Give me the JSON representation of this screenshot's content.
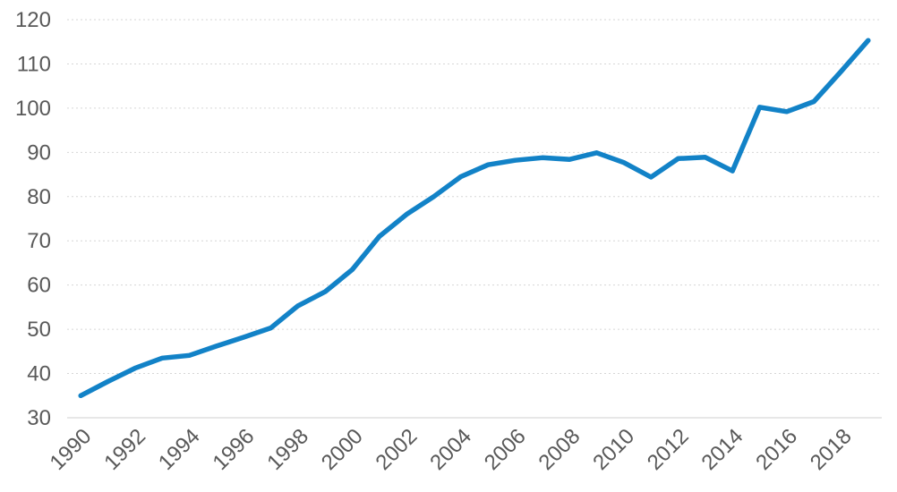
{
  "chart_data": {
    "type": "line",
    "title": "",
    "xlabel": "",
    "ylabel": "",
    "legend": "none",
    "grid": "horizontal-dashed",
    "ylim": [
      30,
      120
    ],
    "y_ticks": [
      30,
      40,
      50,
      60,
      70,
      80,
      90,
      100,
      110,
      120
    ],
    "x": [
      1990,
      1991,
      1992,
      1993,
      1994,
      1995,
      1996,
      1997,
      1998,
      1999,
      2000,
      2001,
      2002,
      2003,
      2004,
      2005,
      2006,
      2007,
      2008,
      2009,
      2010,
      2011,
      2012,
      2013,
      2014,
      2015,
      2016,
      2017,
      2018,
      2019
    ],
    "x_tick_labels": [
      "1990",
      "1992",
      "1994",
      "1996",
      "1998",
      "2000",
      "2002",
      "2004",
      "2006",
      "2008",
      "2010",
      "2012",
      "2014",
      "2016",
      "2018"
    ],
    "series": [
      {
        "name": "series-1",
        "values": [
          35.0,
          38.2,
          41.2,
          43.5,
          44.1,
          46.2,
          48.2,
          50.3,
          55.3,
          58.5,
          63.5,
          71.0,
          76.0,
          80.0,
          84.5,
          87.2,
          88.2,
          88.8,
          88.4,
          89.9,
          87.7,
          84.4,
          88.6,
          88.9,
          85.8,
          100.2,
          99.2,
          101.5,
          108.3,
          115.3
        ]
      }
    ],
    "colors": {
      "line": "#1282C7",
      "gridline": "#D6D6D6",
      "bottom_gridline": "#CFCFCF",
      "tick_label": "#595959",
      "background": "#FFFFFF"
    }
  }
}
